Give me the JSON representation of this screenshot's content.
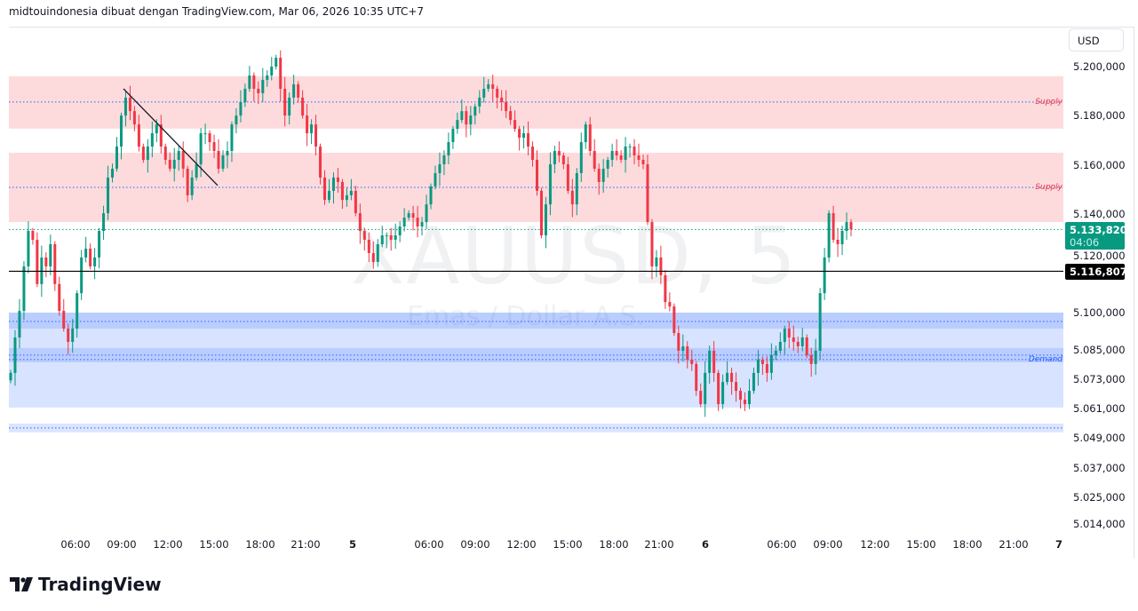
{
  "header": {
    "caption": "midtouindonesia dibuat dengan TradingView.com, Mar 06, 2026 10:35 UTC+7"
  },
  "watermark": {
    "symbol": "XAUUSD, 5",
    "description": "Emas / Dollar A.S."
  },
  "currency_button": "USD",
  "last_price": {
    "value": "5.133,820",
    "countdown": "04:06",
    "color": "#089981"
  },
  "horizontal_line": {
    "value": "5.116,807",
    "price": 5116.807,
    "color": "#000000"
  },
  "logo": {
    "text": "TradingView"
  },
  "colors": {
    "up": "#089981",
    "down": "#f23645",
    "supply": "#f23645",
    "demand": "#2962ff"
  },
  "chart_data": {
    "type": "candlestick",
    "symbol": "XAUUSD",
    "timeframe": "5",
    "ylim": [
      5010,
      5215
    ],
    "yticks": [
      {
        "value": 5200,
        "label": "5.200,000"
      },
      {
        "value": 5180,
        "label": "5.180,000"
      },
      {
        "value": 5160,
        "label": "5.160,000"
      },
      {
        "value": 5140,
        "label": "5.140,000"
      },
      {
        "value": 5120,
        "label": "5.120,000"
      },
      {
        "value": 5100,
        "label": "5.100,000"
      },
      {
        "value": 5085,
        "label": "5.085,000"
      },
      {
        "value": 5073,
        "label": "5.073,000"
      },
      {
        "value": 5061,
        "label": "5.061,000"
      },
      {
        "value": 5049,
        "label": "5.049,000"
      },
      {
        "value": 5037,
        "label": "5.037,000"
      },
      {
        "value": 5025,
        "label": "5.025,000"
      },
      {
        "value": 5014,
        "label": "5.014,000"
      }
    ],
    "xticks": [
      "06:00",
      "09:00",
      "12:00",
      "15:00",
      "18:00",
      "21:00",
      "5",
      "06:00",
      "09:00",
      "12:00",
      "15:00",
      "18:00",
      "21:00",
      "6",
      "06:00",
      "09:00",
      "12:00",
      "15:00",
      "18:00",
      "21:00",
      "7"
    ],
    "closes": [
      5075.5,
      5089.9,
      5100.7,
      5118.8,
      5133.2,
      5129.6,
      5111.6,
      5122.4,
      5118.8,
      5127.8,
      5111.6,
      5100.7,
      5093.5,
      5088.1,
      5093.5,
      5107.9,
      5122.4,
      5126.0,
      5118.8,
      5122.4,
      5133.2,
      5140.4,
      5154.9,
      5158.5,
      5167.5,
      5180.1,
      5187.4,
      5181.9,
      5176.5,
      5167.5,
      5162.1,
      5167.5,
      5172.9,
      5176.5,
      5167.5,
      5162.1,
      5158.5,
      5162.1,
      5165.7,
      5158.5,
      5147.7,
      5154.9,
      5160.3,
      5172.9,
      5172.9,
      5169.3,
      5165.7,
      5158.5,
      5163.9,
      5165.7,
      5176.5,
      5180.1,
      5185.6,
      5191.0,
      5196.4,
      5191.0,
      5189.2,
      5194.6,
      5196.4,
      5200.0,
      5203.6,
      5191.0,
      5180.1,
      5187.4,
      5192.8,
      5187.4,
      5180.1,
      5172.9,
      5176.5,
      5167.5,
      5154.9,
      5145.8,
      5149.5,
      5154.9,
      5153.1,
      5145.8,
      5147.7,
      5149.5,
      5140.4,
      5133.2,
      5129.6,
      5124.2,
      5120.6,
      5127.8,
      5131.4,
      5131.4,
      5129.6,
      5131.4,
      5135.0,
      5138.6,
      5140.4,
      5138.6,
      5135.0,
      5136.8,
      5144.0,
      5151.3,
      5156.7,
      5160.3,
      5163.9,
      5169.3,
      5174.7,
      5178.3,
      5181.9,
      5176.5,
      5180.1,
      5183.8,
      5187.4,
      5191.0,
      5192.8,
      5191.0,
      5187.4,
      5185.6,
      5181.9,
      5178.3,
      5174.7,
      5171.1,
      5172.9,
      5167.5,
      5162.1,
      5149.5,
      5131.4,
      5144.0,
      5160.3,
      5165.7,
      5163.9,
      5160.3,
      5149.5,
      5144.0,
      5156.7,
      5169.3,
      5176.5,
      5165.7,
      5158.5,
      5153.1,
      5158.5,
      5162.1,
      5165.7,
      5163.9,
      5162.1,
      5167.5,
      5167.5,
      5163.9,
      5162.1,
      5160.3,
      5136.8,
      5118.8,
      5122.4,
      5115.2,
      5104.3,
      5102.5,
      5091.7,
      5084.5,
      5086.3,
      5080.9,
      5079.1,
      5068.2,
      5062.8,
      5075.5,
      5084.5,
      5075.5,
      5062.8,
      5071.8,
      5075.5,
      5071.8,
      5068.2,
      5064.6,
      5062.8,
      5068.2,
      5075.5,
      5080.9,
      5079.1,
      5075.5,
      5082.7,
      5084.5,
      5088.1,
      5093.5,
      5089.9,
      5088.1,
      5086.3,
      5089.9,
      5082.7,
      5079.1,
      5084.5,
      5107.9,
      5122.4,
      5140.4,
      5129.6,
      5127.8,
      5133.2,
      5136.8,
      5133.82
    ],
    "zones": [
      {
        "kind": "supply",
        "label": "Supply",
        "top": 5196.1,
        "bottom": 5174.8,
        "line": 5185.6
      },
      {
        "kind": "supply",
        "label": "Supply",
        "top": 5165.0,
        "bottom": 5136.8,
        "line": 5150.9
      },
      {
        "kind": "demand",
        "label": "Demand",
        "top": 5100.0,
        "bottom": 5061.4,
        "line": 5080.9
      },
      {
        "kind": "demand-band",
        "label": "",
        "top": 5100.0,
        "bottom": 5093.5,
        "line": 5096.4
      },
      {
        "kind": "demand-band",
        "label": "",
        "top": 5085.6,
        "bottom": 5079.8,
        "line": 5082.7
      },
      {
        "kind": "demand-band",
        "label": "",
        "top": 5054.9,
        "bottom": 5051.3,
        "line": 5053.1
      }
    ],
    "trendline": {
      "price_start": 5191.0,
      "price_end": 5151.7
    },
    "grid": false
  }
}
